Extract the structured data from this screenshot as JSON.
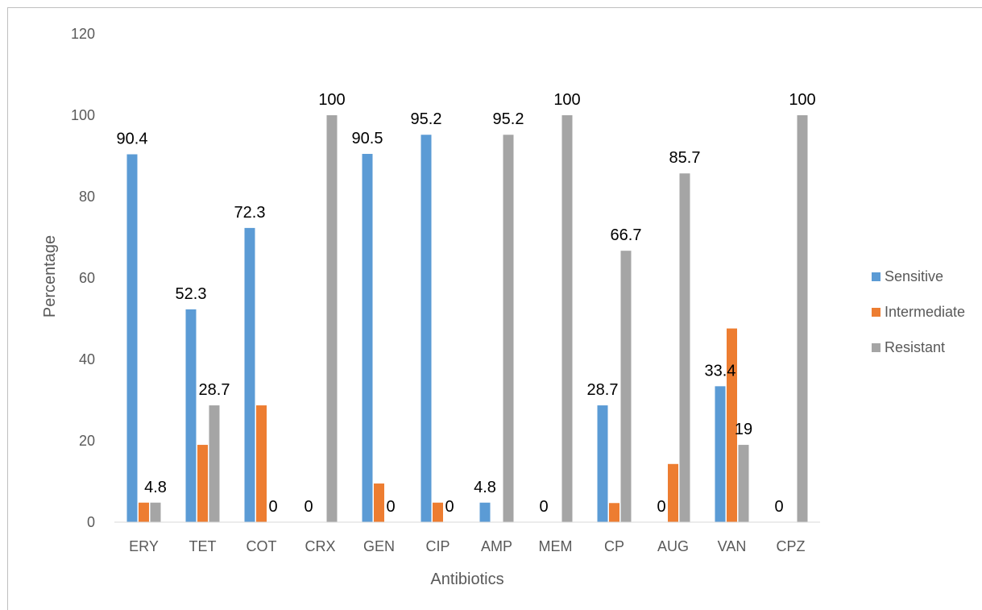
{
  "chart_data": {
    "type": "bar",
    "title": "",
    "xlabel": "Antibiotics",
    "ylabel": "Percentage",
    "ylim": [
      0,
      120
    ],
    "yticks": [
      0,
      20,
      40,
      60,
      80,
      100,
      120
    ],
    "grid": false,
    "legend_position": "right",
    "categories": [
      "ERY",
      "TET",
      "COT",
      "CRX",
      "GEN",
      "CIP",
      "AMP",
      "MEM",
      "CP",
      "AUG",
      "VAN",
      "CPZ"
    ],
    "series": [
      {
        "name": "Sensitive",
        "color": "#5B9BD5",
        "values": [
          90.4,
          52.3,
          72.3,
          0,
          90.5,
          95.2,
          4.8,
          0,
          28.7,
          0,
          33.4,
          0
        ],
        "labels": [
          "90.4",
          "52.3",
          "72.3",
          "0",
          "90.5",
          "95.2",
          "4.8",
          "0",
          "28.7",
          "0",
          "33.4",
          "0"
        ]
      },
      {
        "name": "Intermediate",
        "color": "#ED7D31",
        "values": [
          4.8,
          19,
          28.7,
          0,
          9.5,
          4.8,
          0,
          0,
          4.7,
          14.3,
          47.6,
          0
        ],
        "labels": [
          "",
          "",
          "",
          "",
          "",
          "",
          "",
          "",
          "",
          "",
          "",
          ""
        ]
      },
      {
        "name": "Resistant",
        "color": "#A5A5A5",
        "values": [
          4.8,
          28.7,
          0,
          100,
          0,
          0,
          95.2,
          100,
          66.7,
          85.7,
          19,
          100
        ],
        "labels": [
          "4.8",
          "28.7",
          "0",
          "100",
          "0",
          "0",
          "95.2",
          "100",
          "66.7",
          "85.7",
          "19",
          "100"
        ]
      }
    ]
  }
}
